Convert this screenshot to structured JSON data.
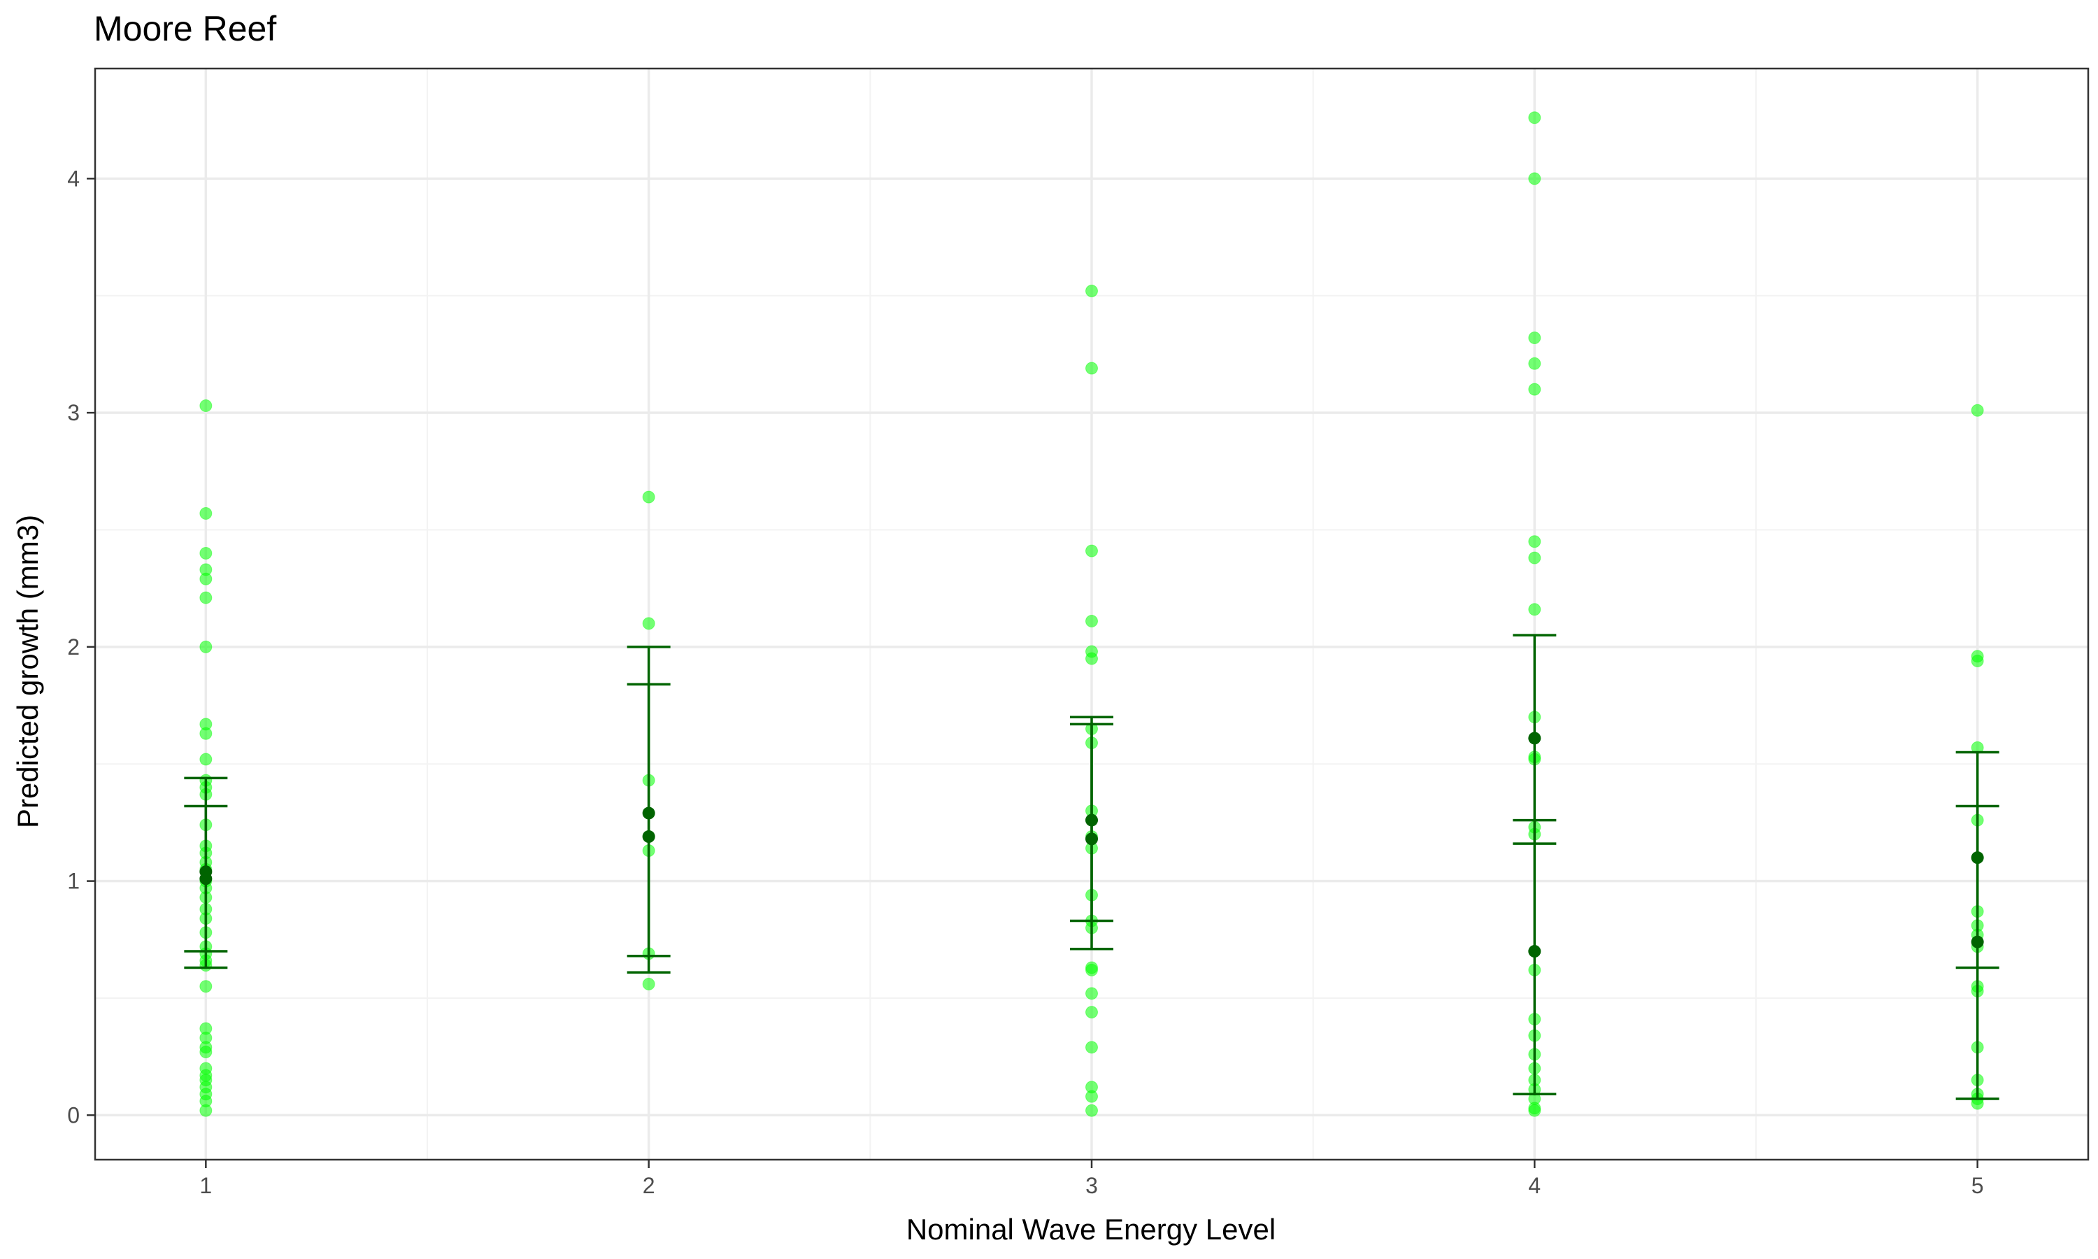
{
  "chart_data": {
    "type": "scatter",
    "title": "Moore Reef",
    "xlabel": "Nominal Wave Energy Level",
    "ylabel": "Predicted growth (mm3)",
    "x_categories": [
      "1",
      "2",
      "3",
      "4",
      "5"
    ],
    "y_ticks": [
      "0",
      "1",
      "2",
      "3",
      "4"
    ],
    "ylim": [
      -0.19,
      4.47
    ],
    "xlim": [
      0.75,
      5.25
    ],
    "grid": true,
    "colors": {
      "raw_points": "#00ff00",
      "summary": "#006400",
      "grid_major": "#ebebeb",
      "grid_minor": "#f3f3f3",
      "panel_border": "#333333"
    },
    "raw_points": [
      {
        "x": 1,
        "values": [
          3.03,
          2.57,
          2.4,
          2.33,
          2.29,
          2.21,
          2.0,
          1.67,
          1.63,
          1.52,
          1.43,
          1.4,
          1.37,
          1.24,
          1.15,
          1.12,
          1.08,
          1.05,
          1.0,
          0.97,
          0.93,
          0.88,
          0.84,
          0.78,
          0.72,
          0.69,
          0.66,
          0.64,
          0.55,
          0.37,
          0.33,
          0.29,
          0.27,
          0.2,
          0.17,
          0.15,
          0.12,
          0.09,
          0.06,
          0.02
        ]
      },
      {
        "x": 2,
        "values": [
          2.64,
          2.1,
          1.43,
          1.19,
          1.13,
          0.69,
          0.56
        ]
      },
      {
        "x": 3,
        "values": [
          3.52,
          3.19,
          2.41,
          2.11,
          1.98,
          1.95,
          1.65,
          1.59,
          1.3,
          1.19,
          1.14,
          0.94,
          0.83,
          0.8,
          0.63,
          0.62,
          0.52,
          0.44,
          0.29,
          0.12,
          0.08,
          0.02
        ]
      },
      {
        "x": 4,
        "values": [
          4.26,
          4.0,
          3.32,
          3.21,
          3.1,
          2.45,
          2.38,
          2.16,
          1.7,
          1.53,
          1.52,
          1.23,
          1.2,
          0.62,
          0.41,
          0.34,
          0.26,
          0.2,
          0.15,
          0.11,
          0.07,
          0.03,
          0.02
        ]
      },
      {
        "x": 5,
        "values": [
          3.01,
          1.96,
          1.94,
          1.57,
          1.26,
          0.87,
          0.81,
          0.77,
          0.72,
          0.55,
          0.53,
          0.29,
          0.15,
          0.09,
          0.07,
          0.05
        ]
      }
    ],
    "summary_series": [
      {
        "name": "series-a",
        "points": [
          {
            "x": 1,
            "mean": 1.04,
            "lower": 0.63,
            "upper": 1.44
          },
          {
            "x": 2,
            "mean": 1.29,
            "lower": 0.61,
            "upper": 2.0
          },
          {
            "x": 3,
            "mean": 1.26,
            "lower": 0.83,
            "upper": 1.7
          },
          {
            "x": 4,
            "mean": 1.61,
            "lower": 1.16,
            "upper": 2.05
          },
          {
            "x": 5,
            "mean": 1.1,
            "lower": 0.63,
            "upper": 1.55
          }
        ]
      },
      {
        "name": "series-b",
        "points": [
          {
            "x": 1,
            "mean": 1.01,
            "lower": 0.7,
            "upper": 1.32
          },
          {
            "x": 2,
            "mean": 1.19,
            "lower": 0.68,
            "upper": 1.84
          },
          {
            "x": 3,
            "mean": 1.18,
            "lower": 0.71,
            "upper": 1.67
          },
          {
            "x": 4,
            "mean": 0.7,
            "lower": 0.09,
            "upper": 1.26
          },
          {
            "x": 5,
            "mean": 0.74,
            "lower": 0.07,
            "upper": 1.32
          }
        ]
      }
    ]
  }
}
